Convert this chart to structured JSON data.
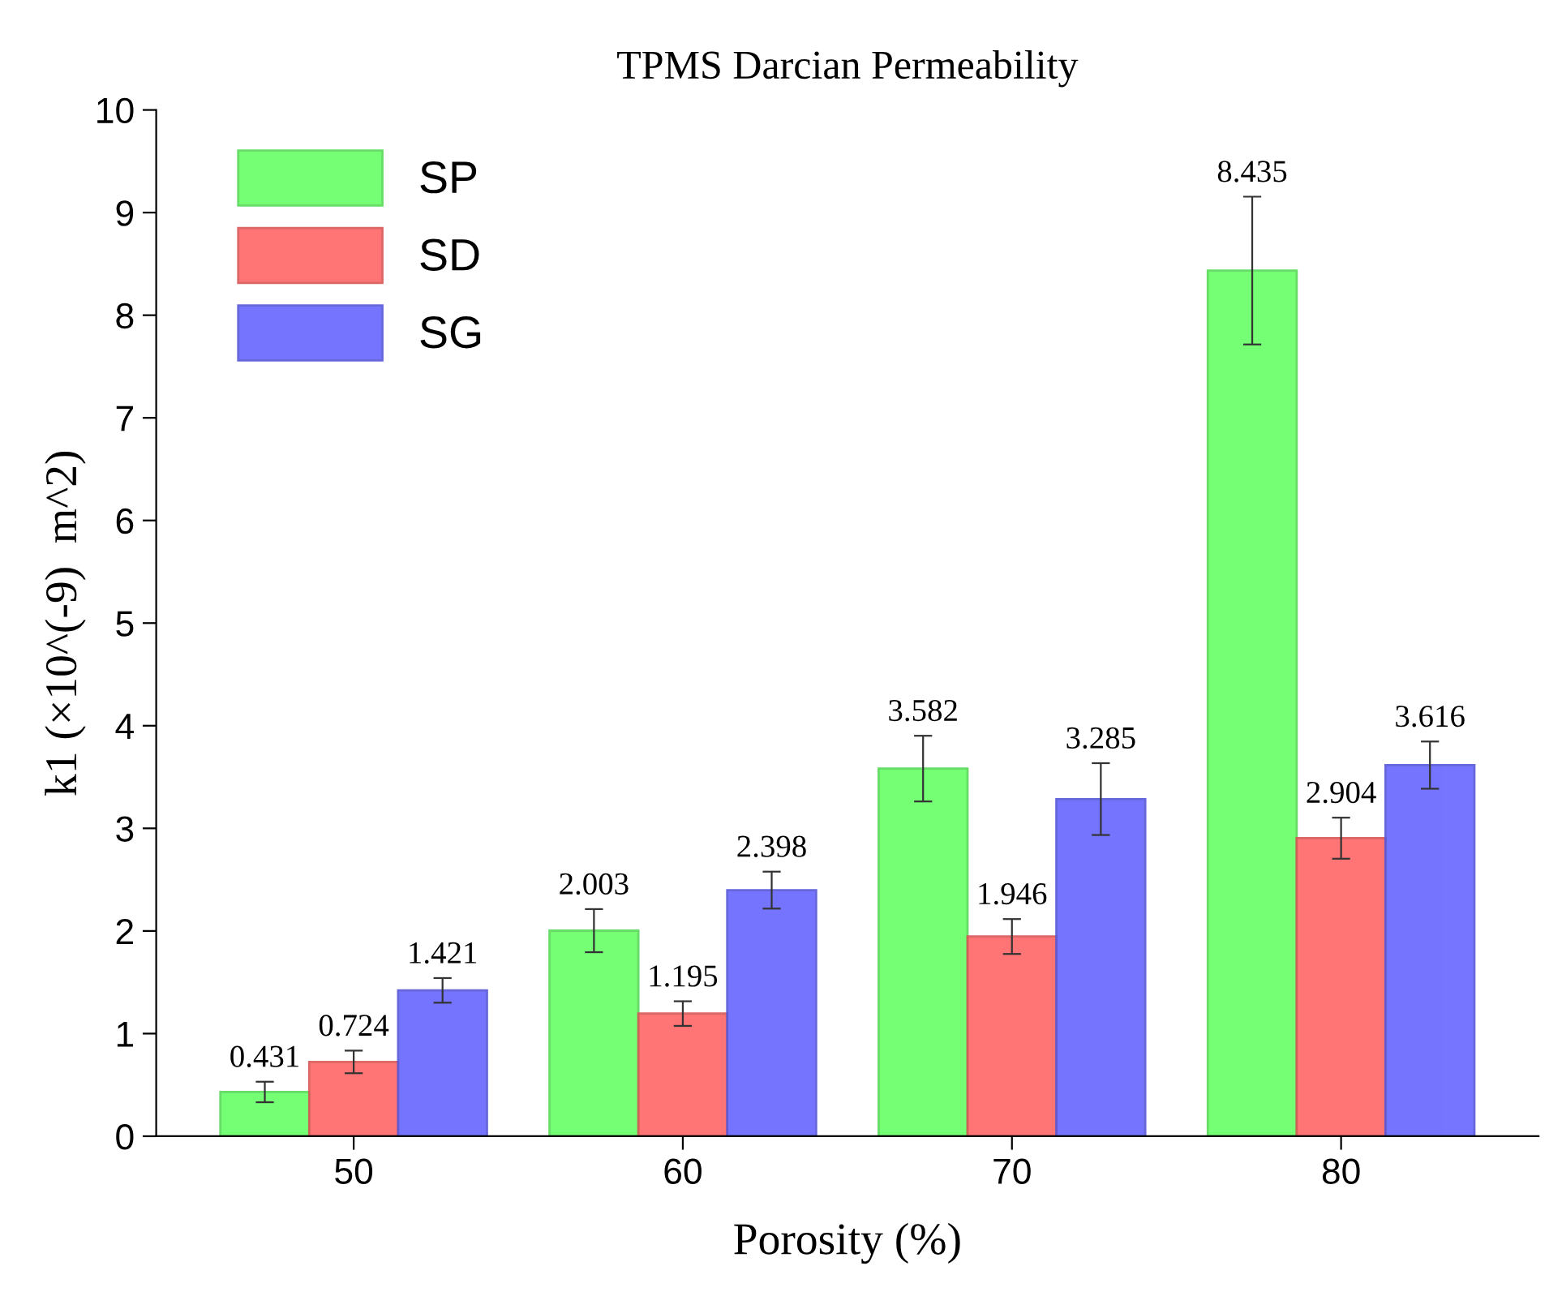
{
  "chart_data": {
    "type": "bar",
    "title": "TPMS Darcian Permeability",
    "xlabel": "Porosity (%)",
    "ylabel": "k1 (×10^(-9)  m^2)",
    "categories": [
      "50",
      "60",
      "70",
      "80"
    ],
    "series": [
      {
        "name": "SP",
        "color": "#66ff66",
        "values": [
          0.431,
          2.003,
          3.582,
          8.435
        ],
        "errors": [
          0.1,
          0.21,
          0.32,
          0.72
        ]
      },
      {
        "name": "SD",
        "color": "#ff6666",
        "values": [
          0.724,
          1.195,
          1.946,
          2.904
        ],
        "errors": [
          0.11,
          0.12,
          0.17,
          0.2
        ]
      },
      {
        "name": "SG",
        "color": "#6666ff",
        "values": [
          1.421,
          2.398,
          3.285,
          3.616
        ],
        "errors": [
          0.12,
          0.18,
          0.35,
          0.23
        ]
      }
    ],
    "ylim": [
      0,
      10
    ],
    "yticks": [
      0,
      1,
      2,
      3,
      4,
      5,
      6,
      7,
      8,
      9,
      10
    ],
    "data_labels": true,
    "legend": "top left",
    "grid": false
  }
}
